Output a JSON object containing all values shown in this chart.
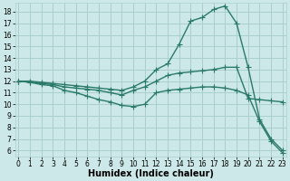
{
  "bg_color": "#cce8e8",
  "grid_color": "#aacfcf",
  "line_color": "#2a7a6a",
  "line_width": 1.0,
  "marker": "+",
  "marker_size": 4,
  "marker_edge_width": 0.8,
  "xlabel": "Humidex (Indice chaleur)",
  "xlabel_fontsize": 7,
  "xlabel_fontweight": "bold",
  "yticks": [
    6,
    7,
    8,
    9,
    10,
    11,
    12,
    13,
    14,
    15,
    16,
    17,
    18
  ],
  "xticks": [
    0,
    1,
    2,
    3,
    4,
    5,
    6,
    7,
    8,
    9,
    10,
    11,
    12,
    13,
    14,
    15,
    16,
    17,
    18,
    19,
    20,
    21,
    22,
    23
  ],
  "xlim": [
    -0.3,
    23.3
  ],
  "ylim": [
    5.5,
    18.8
  ],
  "tick_fontsize": 5.5,
  "lines": [
    {
      "x": [
        0,
        1,
        2,
        3,
        4,
        5,
        6,
        7,
        8,
        9,
        10,
        11,
        12,
        13,
        14,
        15,
        16,
        17,
        18,
        19,
        20,
        21,
        22,
        23
      ],
      "y": [
        12,
        12,
        11.9,
        11.8,
        11.7,
        11.6,
        11.5,
        11.4,
        11.3,
        11.2,
        11.5,
        12.0,
        13.0,
        13.5,
        15.2,
        17.2,
        17.5,
        18.2,
        18.5,
        17.0,
        13.2,
        8.7,
        7.0,
        6.0
      ]
    },
    {
      "x": [
        0,
        1,
        2,
        3,
        4,
        5,
        6,
        7,
        8,
        9,
        10,
        11,
        12,
        13,
        14,
        15,
        16,
        17,
        18,
        19,
        20,
        21,
        22,
        23
      ],
      "y": [
        12,
        11.9,
        11.8,
        11.7,
        11.5,
        11.4,
        11.3,
        11.2,
        11.0,
        10.8,
        11.2,
        11.5,
        12.0,
        12.5,
        12.7,
        12.8,
        12.9,
        13.0,
        13.2,
        13.2,
        10.5,
        10.4,
        10.3,
        10.2
      ]
    },
    {
      "x": [
        0,
        1,
        2,
        3,
        4,
        5,
        6,
        7,
        8,
        9,
        10,
        11,
        12,
        13,
        14,
        15,
        16,
        17,
        18,
        19,
        20,
        21,
        22,
        23
      ],
      "y": [
        12,
        11.9,
        11.7,
        11.6,
        11.2,
        11.0,
        10.7,
        10.4,
        10.2,
        9.9,
        9.8,
        10.0,
        11.0,
        11.2,
        11.3,
        11.4,
        11.5,
        11.5,
        11.4,
        11.2,
        10.8,
        8.5,
        6.8,
        5.8
      ]
    }
  ]
}
